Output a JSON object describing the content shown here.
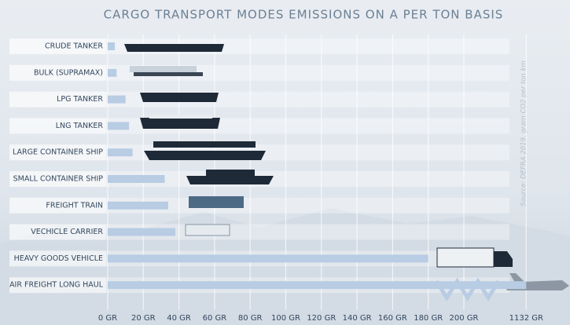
{
  "chart_data": {
    "type": "bar",
    "orientation": "horizontal",
    "title": "CARGO TRANSPORT MODES EMISSIONS ON A PER TON BASIS",
    "source": "Source: DEFRA 2019, gram CO2 per ton km",
    "categories": [
      "CRUDE TANKER",
      "BULK (SUPRAMAX)",
      "LPG TANKER",
      "LNG TANKER",
      "LARGE CONTAINER SHIP",
      "SMALL CONTAINER SHIP",
      "FREIGHT TRAIN",
      "VECHICLE  CARRIER",
      "HEAVY GOODS VEHICLE",
      "AIR FREIGHT LONG HAUL"
    ],
    "values": [
      4,
      5,
      10,
      12,
      14,
      32,
      34,
      38,
      180,
      1132
    ],
    "color": "#b8cce3",
    "xlim": [
      0,
      1132
    ],
    "xticks": [
      {
        "value": 0,
        "label": "0 GR"
      },
      {
        "value": 20,
        "label": "20 GR"
      },
      {
        "value": 40,
        "label": "40 GR"
      },
      {
        "value": 60,
        "label": "60 GR"
      },
      {
        "value": 80,
        "label": "80 GR"
      },
      {
        "value": 100,
        "label": "100 GR"
      },
      {
        "value": 120,
        "label": "120 GR"
      },
      {
        "value": 140,
        "label": "140 GR"
      },
      {
        "value": 160,
        "label": "160 GR"
      },
      {
        "value": 180,
        "label": "180 GR"
      },
      {
        "value": 200,
        "label": "200 GR"
      },
      {
        "value": 1132,
        "label": "1132 GR"
      }
    ],
    "axis_break": true,
    "grid": true
  }
}
